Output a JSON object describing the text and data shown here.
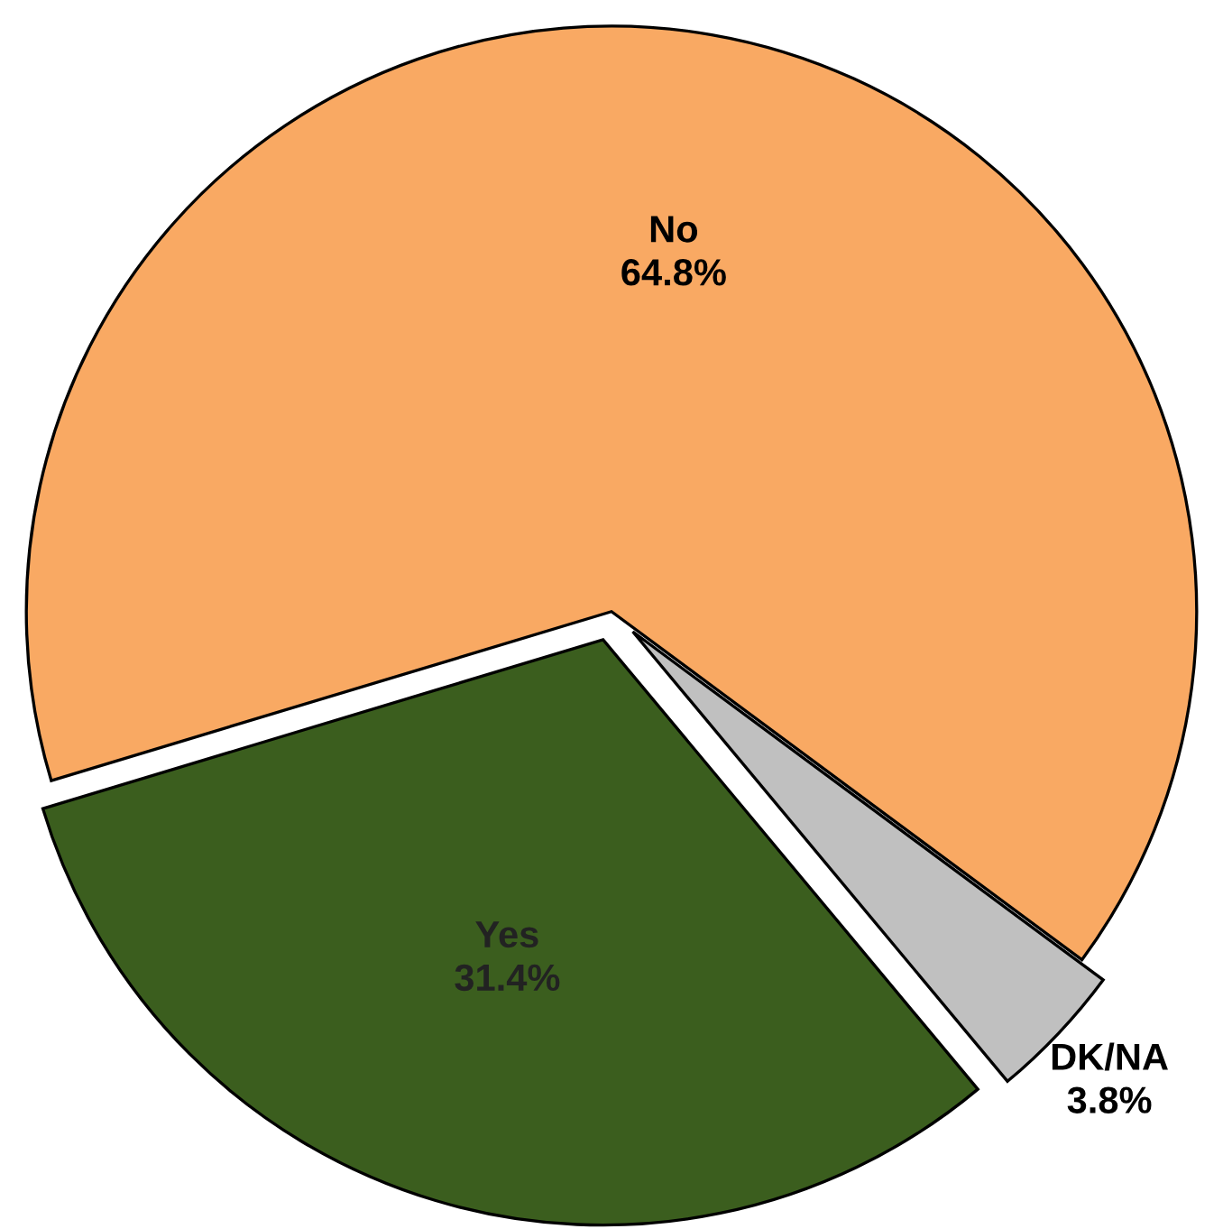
{
  "chart_data": {
    "type": "pie",
    "categories": [
      "No",
      "Yes",
      "DK/NA"
    ],
    "values": [
      64.8,
      31.4,
      3.8
    ],
    "colors": [
      "#f9a963",
      "#3b5e1e",
      "#c0c0c0"
    ],
    "value_labels": [
      "64.8%",
      "31.4%",
      "3.8%"
    ]
  }
}
